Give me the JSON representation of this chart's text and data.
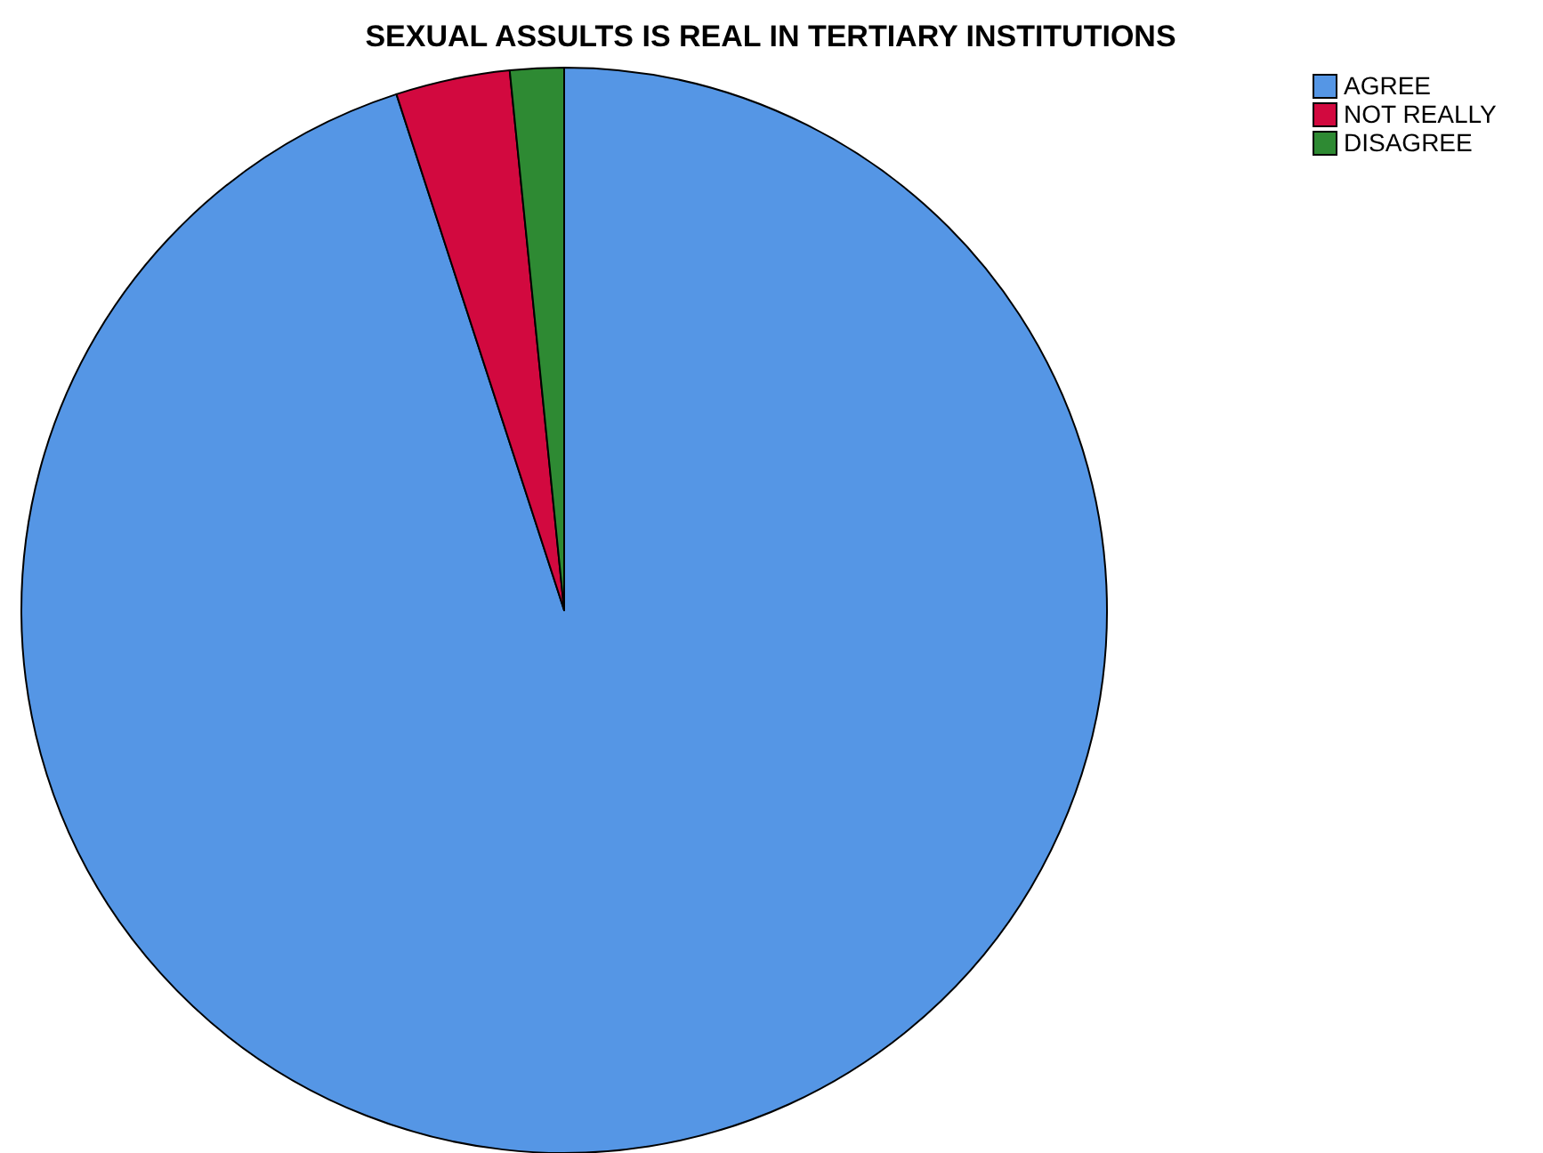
{
  "chart_data": {
    "type": "pie",
    "title": "SEXUAL ASSULTS IS REAL IN TERTIARY INSTITUTIONS",
    "categories": [
      "AGREE",
      "NOT REALLY",
      "DISAGREE"
    ],
    "values": [
      95,
      3.4,
      1.6
    ],
    "colors": [
      "#5596e5",
      "#d2093f",
      "#2e8a33"
    ],
    "legend": "top right"
  }
}
